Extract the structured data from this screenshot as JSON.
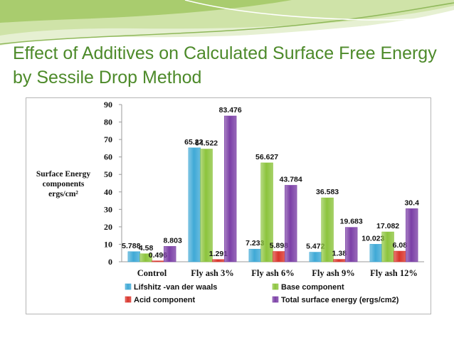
{
  "slide": {
    "title": "Effect of Additives on Calculated Surface Free Energy by Sessile Drop Method"
  },
  "colors": {
    "title": "#4d8a2a",
    "decor_light": "#cfe3a8",
    "decor_mid": "#a9cc6e",
    "decor_dark": "#6f9f3a"
  },
  "chart_data": {
    "type": "bar",
    "ylabel_lines": [
      "Surface Energy",
      "components",
      "ergs/cm²"
    ],
    "ylim": [
      0,
      90
    ],
    "yticks": [
      0,
      10,
      20,
      30,
      40,
      50,
      60,
      70,
      80,
      90
    ],
    "grid": false,
    "legend_position": "bottom",
    "categories": [
      "Control",
      "Fly ash 3%",
      "Fly ash 6%",
      "Fly ash 9%",
      "Fly ash 12%"
    ],
    "series": [
      {
        "name": "Lifshitz -van der waals",
        "color": "#3fa9d6",
        "values": [
          5.788,
          65.22,
          7.233,
          5.472,
          10.023
        ],
        "labels": [
          "5.788",
          "65.22",
          "7.233",
          "5.472",
          "10.023"
        ]
      },
      {
        "name": "Base component",
        "color": "#8cc43d",
        "values": [
          4.58,
          64.522,
          56.627,
          36.583,
          17.082
        ],
        "labels": [
          "4.58",
          "64.522",
          "56.627",
          "36.583",
          "17.082"
        ]
      },
      {
        "name": "Acid component",
        "color": "#d9352c",
        "values": [
          0.496,
          1.291,
          5.898,
          1.38,
          6.08
        ],
        "labels": [
          "0.496",
          "1.291",
          "5.898",
          "1.38",
          "6.08"
        ]
      },
      {
        "name": "Total surface energy (ergs/cm2)",
        "color": "#7b3fa6",
        "values": [
          8.803,
          83.476,
          43.784,
          19.683,
          30.4
        ],
        "labels": [
          "8.803",
          "83.476",
          "43.784",
          "19.683",
          "30.4"
        ]
      }
    ]
  }
}
